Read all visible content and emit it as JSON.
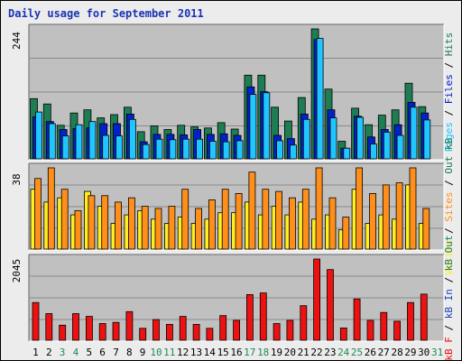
{
  "title": "Daily usage for September 2011",
  "colors": {
    "background": "#ececec",
    "plot_bg": "#c0c0c0",
    "grid": "#8a8a8a",
    "hits": "#1e7d52",
    "files": "#0022cc",
    "pages": "#1fc6ff",
    "visits": "#ffee22",
    "sites": "#ff8f1a",
    "kbin": "#1a44bb",
    "kbf": "#ee1111",
    "weekday_tick": "#000000",
    "weekend_tick": "#1e8a52"
  },
  "chart_data": [
    {
      "type": "bar",
      "panel": "hits_files_pages",
      "ymax_label": "244",
      "ylim": [
        0,
        244
      ],
      "categories": [
        "1",
        "2",
        "3",
        "4",
        "5",
        "6",
        "7",
        "8",
        "9",
        "10",
        "11",
        "12",
        "13",
        "14",
        "15",
        "16",
        "17",
        "18",
        "19",
        "20",
        "21",
        "22",
        "23",
        "24",
        "25",
        "26",
        "27",
        "28",
        "29",
        "30",
        "31"
      ],
      "legend": [
        "Pages",
        "/",
        "Files",
        "/",
        "Hits"
      ],
      "series": [
        {
          "name": "Hits",
          "values": [
            113,
            103,
            63,
            86,
            92,
            77,
            83,
            97,
            51,
            62,
            55,
            63,
            60,
            58,
            68,
            56,
            157,
            157,
            97,
            71,
            115,
            244,
            131,
            33,
            95,
            64,
            82,
            92,
            142,
            98,
            0
          ]
        },
        {
          "name": "Files",
          "values": [
            79,
            70,
            55,
            57,
            58,
            66,
            66,
            84,
            32,
            46,
            46,
            45,
            55,
            46,
            47,
            44,
            135,
            126,
            44,
            38,
            84,
            224,
            92,
            20,
            80,
            41,
            55,
            64,
            106,
            86,
            0
          ]
        },
        {
          "name": "Pages",
          "values": [
            88,
            66,
            43,
            64,
            70,
            44,
            43,
            74,
            27,
            37,
            36,
            37,
            37,
            33,
            32,
            34,
            121,
            124,
            34,
            26,
            74,
            226,
            77,
            20,
            78,
            28,
            50,
            44,
            97,
            73,
            0
          ]
        }
      ]
    },
    {
      "type": "bar",
      "panel": "visits_sites",
      "ymax_label": "38",
      "ylim": [
        0,
        38
      ],
      "categories": [
        "1",
        "2",
        "3",
        "4",
        "5",
        "6",
        "7",
        "8",
        "9",
        "10",
        "11",
        "12",
        "13",
        "14",
        "15",
        "16",
        "17",
        "18",
        "19",
        "20",
        "21",
        "22",
        "23",
        "24",
        "25",
        "26",
        "27",
        "28",
        "29",
        "30",
        "31"
      ],
      "legend": [
        "Visits",
        "/",
        "Sites",
        "/",
        "Out",
        "kB"
      ],
      "series": [
        {
          "name": "Visits",
          "values": [
            28,
            22,
            24,
            16,
            27,
            20,
            12,
            16,
            18,
            14,
            12,
            15,
            12,
            14,
            17,
            17,
            22,
            16,
            20,
            16,
            22,
            14,
            16,
            9,
            28,
            12,
            16,
            14,
            30,
            12,
            0
          ]
        },
        {
          "name": "Sites",
          "values": [
            33,
            38,
            28,
            18,
            25,
            25,
            22,
            24,
            20,
            19,
            20,
            28,
            19,
            23,
            28,
            26,
            36,
            28,
            27,
            24,
            28,
            38,
            24,
            15,
            38,
            26,
            30,
            31,
            38,
            19,
            0
          ]
        }
      ]
    },
    {
      "type": "bar",
      "panel": "kbytes",
      "ymax_label": "2045",
      "ylim": [
        0,
        2045
      ],
      "categories": [
        "1",
        "2",
        "3",
        "4",
        "5",
        "6",
        "7",
        "8",
        "9",
        "10",
        "11",
        "12",
        "13",
        "14",
        "15",
        "16",
        "17",
        "18",
        "19",
        "20",
        "21",
        "22",
        "23",
        "24",
        "25",
        "26",
        "27",
        "28",
        "29",
        "30",
        "31"
      ],
      "legend": [
        "kB",
        "F",
        "/",
        "kB",
        "In",
        "/",
        "kB",
        "Out"
      ],
      "series": [
        {
          "name": "kB F",
          "values": [
            950,
            670,
            380,
            670,
            600,
            420,
            450,
            720,
            300,
            520,
            400,
            600,
            400,
            300,
            620,
            500,
            1150,
            1190,
            420,
            500,
            870,
            2045,
            1780,
            310,
            1040,
            500,
            700,
            480,
            950,
            1160,
            0
          ]
        }
      ]
    }
  ],
  "x_ticks": [
    {
      "label": "1",
      "weekend": false
    },
    {
      "label": "2",
      "weekend": false
    },
    {
      "label": "3",
      "weekend": true
    },
    {
      "label": "4",
      "weekend": true
    },
    {
      "label": "5",
      "weekend": false
    },
    {
      "label": "6",
      "weekend": false
    },
    {
      "label": "7",
      "weekend": false
    },
    {
      "label": "8",
      "weekend": false
    },
    {
      "label": "9",
      "weekend": false
    },
    {
      "label": "10",
      "weekend": true
    },
    {
      "label": "11",
      "weekend": true
    },
    {
      "label": "12",
      "weekend": false
    },
    {
      "label": "13",
      "weekend": false
    },
    {
      "label": "14",
      "weekend": false
    },
    {
      "label": "15",
      "weekend": false
    },
    {
      "label": "16",
      "weekend": false
    },
    {
      "label": "17",
      "weekend": true
    },
    {
      "label": "18",
      "weekend": true
    },
    {
      "label": "19",
      "weekend": false
    },
    {
      "label": "20",
      "weekend": false
    },
    {
      "label": "21",
      "weekend": false
    },
    {
      "label": "22",
      "weekend": false
    },
    {
      "label": "23",
      "weekend": false
    },
    {
      "label": "24",
      "weekend": true
    },
    {
      "label": "25",
      "weekend": true
    },
    {
      "label": "26",
      "weekend": false
    },
    {
      "label": "27",
      "weekend": false
    },
    {
      "label": "28",
      "weekend": false
    },
    {
      "label": "29",
      "weekend": false
    },
    {
      "label": "30",
      "weekend": false
    },
    {
      "label": "31",
      "weekend": true
    }
  ]
}
